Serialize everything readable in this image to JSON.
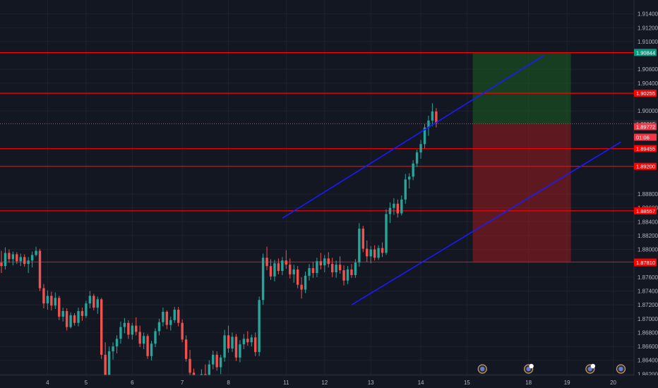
{
  "colors": {
    "background": "#131722",
    "grid": "#1e222d",
    "axis_text": "#b2b5be",
    "candle_up": "#26a69a",
    "candle_down": "#ef5350",
    "level_line": "#ff0000",
    "channel_line": "#1a1aff",
    "target_zone": "#1b5e20",
    "stop_zone": "#b71c1c",
    "current_price_tag": "#f23645",
    "target_tag": "#089981"
  },
  "chart_data": {
    "type": "candlestick",
    "title": "",
    "y_axis": {
      "position": "right",
      "range": [
        1.86,
        1.916
      ],
      "ticks": [
        "1.91400",
        "1.91200",
        "1.91000",
        "1.90600",
        "1.90400",
        "1.90000",
        "1.88800",
        "1.88600",
        "1.88400",
        "1.88200",
        "1.88000",
        "1.87600",
        "1.87400",
        "1.87200",
        "1.87000",
        "1.86800",
        "1.86600",
        "1.86400",
        "1.86200"
      ]
    },
    "x_axis": {
      "ticks": [
        {
          "label": "4",
          "idx": 12
        },
        {
          "label": "5",
          "idx": 22
        },
        {
          "label": "6",
          "idx": 34
        },
        {
          "label": "7",
          "idx": 47
        },
        {
          "label": "8",
          "idx": 59
        },
        {
          "label": "11",
          "idx": 74
        },
        {
          "label": "12",
          "idx": 84
        },
        {
          "label": "13",
          "idx": 96
        },
        {
          "label": "14",
          "idx": 109
        },
        {
          "label": "15",
          "idx": 121
        },
        {
          "label": "18",
          "idx": 137
        },
        {
          "label": "19",
          "idx": 147
        },
        {
          "label": "20",
          "idx": 159
        }
      ]
    },
    "price_tags": [
      {
        "label": "1.90841",
        "price": 1.90841,
        "kind": "level"
      },
      {
        "label": "1.90844",
        "price": 1.90844,
        "kind": "target"
      },
      {
        "label": "1.90255",
        "price": 1.90255,
        "kind": "level"
      },
      {
        "label": "1.89815",
        "price": 1.89815,
        "kind": "current-ref"
      },
      {
        "label": "1.89772",
        "price": 1.89772,
        "kind": "current"
      },
      {
        "label": "01:06",
        "price": 1.8962,
        "kind": "countdown"
      },
      {
        "label": "1.89455",
        "price": 1.89455,
        "kind": "level"
      },
      {
        "label": "1.89200",
        "price": 1.892,
        "kind": "level"
      },
      {
        "label": "1.88557",
        "price": 1.88557,
        "kind": "level"
      },
      {
        "label": "1.87818",
        "price": 1.87818,
        "kind": "level"
      },
      {
        "label": "1.87810",
        "price": 1.8781,
        "kind": "stop"
      }
    ],
    "horizontal_levels": [
      1.90841,
      1.90255,
      1.89455,
      1.892,
      1.88557,
      1.87818
    ],
    "current_price_line": 1.89815,
    "channel": [
      {
        "from": {
          "idx": 73,
          "price": 1.8845
        },
        "to": {
          "idx": 141,
          "price": 1.908
        }
      },
      {
        "from": {
          "idx": 91,
          "price": 1.872
        },
        "to": {
          "idx": 161,
          "price": 1.8955
        }
      }
    ],
    "position": {
      "start_idx": 122.5,
      "end_idx": 148,
      "entry": 1.89815,
      "target": 1.90844,
      "stop": 1.8781
    },
    "event_markers": [
      {
        "idx": 125,
        "label": ""
      },
      {
        "idx": 137,
        "label": "2"
      },
      {
        "idx": 153,
        "label": "3"
      },
      {
        "idx": 161,
        "label": ""
      }
    ],
    "candles": [
      [
        1.8781,
        1.8798,
        1.8766,
        1.8776
      ],
      [
        1.8776,
        1.8803,
        1.8771,
        1.8795
      ],
      [
        1.8795,
        1.88,
        1.8781,
        1.8786
      ],
      [
        1.8786,
        1.8797,
        1.8777,
        1.8793
      ],
      [
        1.8793,
        1.8796,
        1.8779,
        1.8783
      ],
      [
        1.8783,
        1.8794,
        1.8776,
        1.8789
      ],
      [
        1.8789,
        1.8793,
        1.8775,
        1.8779
      ],
      [
        1.8779,
        1.8789,
        1.8766,
        1.8784
      ],
      [
        1.8784,
        1.8797,
        1.8774,
        1.8792
      ],
      [
        1.8792,
        1.8804,
        1.879,
        1.8798
      ],
      [
        1.8798,
        1.8801,
        1.874,
        1.8744
      ],
      [
        1.8744,
        1.875,
        1.8715,
        1.8722
      ],
      [
        1.8722,
        1.8741,
        1.8713,
        1.8733
      ],
      [
        1.8733,
        1.8739,
        1.8712,
        1.8719
      ],
      [
        1.8719,
        1.8738,
        1.8714,
        1.873
      ],
      [
        1.873,
        1.8733,
        1.8698,
        1.8703
      ],
      [
        1.8703,
        1.8716,
        1.8696,
        1.8711
      ],
      [
        1.8711,
        1.8715,
        1.8683,
        1.8688
      ],
      [
        1.8688,
        1.8709,
        1.8686,
        1.8705
      ],
      [
        1.8705,
        1.8708,
        1.869,
        1.8694
      ],
      [
        1.8694,
        1.8716,
        1.8689,
        1.8711
      ],
      [
        1.8711,
        1.8716,
        1.8697,
        1.8704
      ],
      [
        1.8704,
        1.8726,
        1.8701,
        1.8722
      ],
      [
        1.8722,
        1.874,
        1.8715,
        1.8733
      ],
      [
        1.8733,
        1.8736,
        1.8712,
        1.8716
      ],
      [
        1.8716,
        1.8732,
        1.8707,
        1.8728
      ],
      [
        1.8728,
        1.873,
        1.8642,
        1.8648
      ],
      [
        1.8648,
        1.8666,
        1.861,
        1.8619
      ],
      [
        1.8619,
        1.866,
        1.8615,
        1.8653
      ],
      [
        1.8653,
        1.8666,
        1.8641,
        1.866
      ],
      [
        1.866,
        1.8676,
        1.865,
        1.8671
      ],
      [
        1.8671,
        1.8696,
        1.8664,
        1.8688
      ],
      [
        1.8688,
        1.8701,
        1.8679,
        1.8694
      ],
      [
        1.8694,
        1.8698,
        1.8671,
        1.8677
      ],
      [
        1.8677,
        1.8694,
        1.867,
        1.869
      ],
      [
        1.869,
        1.8702,
        1.8676,
        1.8681
      ],
      [
        1.8681,
        1.869,
        1.8659,
        1.8664
      ],
      [
        1.8664,
        1.868,
        1.8656,
        1.8675
      ],
      [
        1.8675,
        1.8678,
        1.8642,
        1.8646
      ],
      [
        1.8646,
        1.8668,
        1.864,
        1.8664
      ],
      [
        1.8664,
        1.8686,
        1.8659,
        1.8682
      ],
      [
        1.8682,
        1.87,
        1.8676,
        1.8695
      ],
      [
        1.8695,
        1.8716,
        1.8689,
        1.871
      ],
      [
        1.871,
        1.8712,
        1.8685,
        1.8691
      ],
      [
        1.8691,
        1.8703,
        1.8683,
        1.8698
      ],
      [
        1.8698,
        1.8717,
        1.8694,
        1.8713
      ],
      [
        1.8713,
        1.8717,
        1.8689,
        1.8694
      ],
      [
        1.8694,
        1.8699,
        1.8666,
        1.867
      ],
      [
        1.867,
        1.8676,
        1.8638,
        1.8642
      ],
      [
        1.8642,
        1.8655,
        1.8616,
        1.8622
      ],
      [
        1.8622,
        1.8628,
        1.8588,
        1.8594
      ],
      [
        1.8594,
        1.8609,
        1.8575,
        1.86
      ],
      [
        1.86,
        1.8627,
        1.859,
        1.862
      ],
      [
        1.862,
        1.8634,
        1.8611,
        1.8616
      ],
      [
        1.8616,
        1.864,
        1.8608,
        1.8634
      ],
      [
        1.8634,
        1.8654,
        1.8627,
        1.8648
      ],
      [
        1.8648,
        1.8653,
        1.8625,
        1.863
      ],
      [
        1.863,
        1.8648,
        1.862,
        1.8644
      ],
      [
        1.8644,
        1.8684,
        1.8638,
        1.8676
      ],
      [
        1.8676,
        1.869,
        1.8651,
        1.8657
      ],
      [
        1.8657,
        1.868,
        1.8652,
        1.8674
      ],
      [
        1.8674,
        1.8678,
        1.8639,
        1.8644
      ],
      [
        1.8644,
        1.8669,
        1.8637,
        1.8663
      ],
      [
        1.8663,
        1.8678,
        1.8656,
        1.8671
      ],
      [
        1.8671,
        1.8682,
        1.8661,
        1.8666
      ],
      [
        1.8666,
        1.8677,
        1.866,
        1.8673
      ],
      [
        1.8673,
        1.868,
        1.8646,
        1.8652
      ],
      [
        1.8652,
        1.8732,
        1.8646,
        1.8727
      ],
      [
        1.8727,
        1.8794,
        1.872,
        1.8788
      ],
      [
        1.8788,
        1.8804,
        1.877,
        1.8776
      ],
      [
        1.8776,
        1.8786,
        1.8756,
        1.8761
      ],
      [
        1.8761,
        1.8785,
        1.8754,
        1.878
      ],
      [
        1.878,
        1.8787,
        1.8764,
        1.8769
      ],
      [
        1.8769,
        1.8789,
        1.8763,
        1.8784
      ],
      [
        1.8784,
        1.8799,
        1.8772,
        1.8778
      ],
      [
        1.8778,
        1.8787,
        1.8758,
        1.8764
      ],
      [
        1.8764,
        1.8778,
        1.8752,
        1.8771
      ],
      [
        1.8771,
        1.8776,
        1.8744,
        1.8749
      ],
      [
        1.8749,
        1.876,
        1.8729,
        1.8742
      ],
      [
        1.8742,
        1.8768,
        1.8737,
        1.8762
      ],
      [
        1.8762,
        1.8779,
        1.8755,
        1.8773
      ],
      [
        1.8773,
        1.8782,
        1.8759,
        1.8766
      ],
      [
        1.8766,
        1.8788,
        1.876,
        1.8783
      ],
      [
        1.8783,
        1.8795,
        1.8771,
        1.8777
      ],
      [
        1.8777,
        1.8792,
        1.8767,
        1.8787
      ],
      [
        1.8787,
        1.8796,
        1.8774,
        1.8779
      ],
      [
        1.8779,
        1.8788,
        1.876,
        1.8767
      ],
      [
        1.8767,
        1.8784,
        1.8759,
        1.8778
      ],
      [
        1.8778,
        1.879,
        1.8765,
        1.877
      ],
      [
        1.877,
        1.8777,
        1.8748,
        1.8755
      ],
      [
        1.8755,
        1.8776,
        1.875,
        1.8771
      ],
      [
        1.8771,
        1.8779,
        1.8759,
        1.8763
      ],
      [
        1.8763,
        1.8786,
        1.8759,
        1.8781
      ],
      [
        1.8781,
        1.8838,
        1.8775,
        1.883
      ],
      [
        1.883,
        1.8834,
        1.8796,
        1.8801
      ],
      [
        1.8801,
        1.8813,
        1.8782,
        1.879
      ],
      [
        1.879,
        1.8805,
        1.878,
        1.88
      ],
      [
        1.88,
        1.8806,
        1.8784,
        1.8788
      ],
      [
        1.8788,
        1.8806,
        1.8785,
        1.8802
      ],
      [
        1.8802,
        1.881,
        1.8789,
        1.8795
      ],
      [
        1.8795,
        1.8858,
        1.8792,
        1.8851
      ],
      [
        1.8851,
        1.8868,
        1.8838,
        1.886
      ],
      [
        1.886,
        1.8874,
        1.885,
        1.8866
      ],
      [
        1.8866,
        1.8872,
        1.8846,
        1.8852
      ],
      [
        1.8852,
        1.8878,
        1.8849,
        1.8872
      ],
      [
        1.8872,
        1.8909,
        1.8866,
        1.8901
      ],
      [
        1.8901,
        1.891,
        1.8888,
        1.8905
      ],
      [
        1.8905,
        1.8929,
        1.89,
        1.8924
      ],
      [
        1.8924,
        1.8944,
        1.8919,
        1.894
      ],
      [
        1.894,
        1.8958,
        1.8931,
        1.8952
      ],
      [
        1.8952,
        1.8981,
        1.8946,
        1.8976
      ],
      [
        1.8976,
        1.8993,
        1.8964,
        1.8986
      ],
      [
        1.8986,
        1.9011,
        1.8978,
        1.8999
      ],
      [
        1.8999,
        1.9004,
        1.8976,
        1.8982
      ]
    ]
  }
}
